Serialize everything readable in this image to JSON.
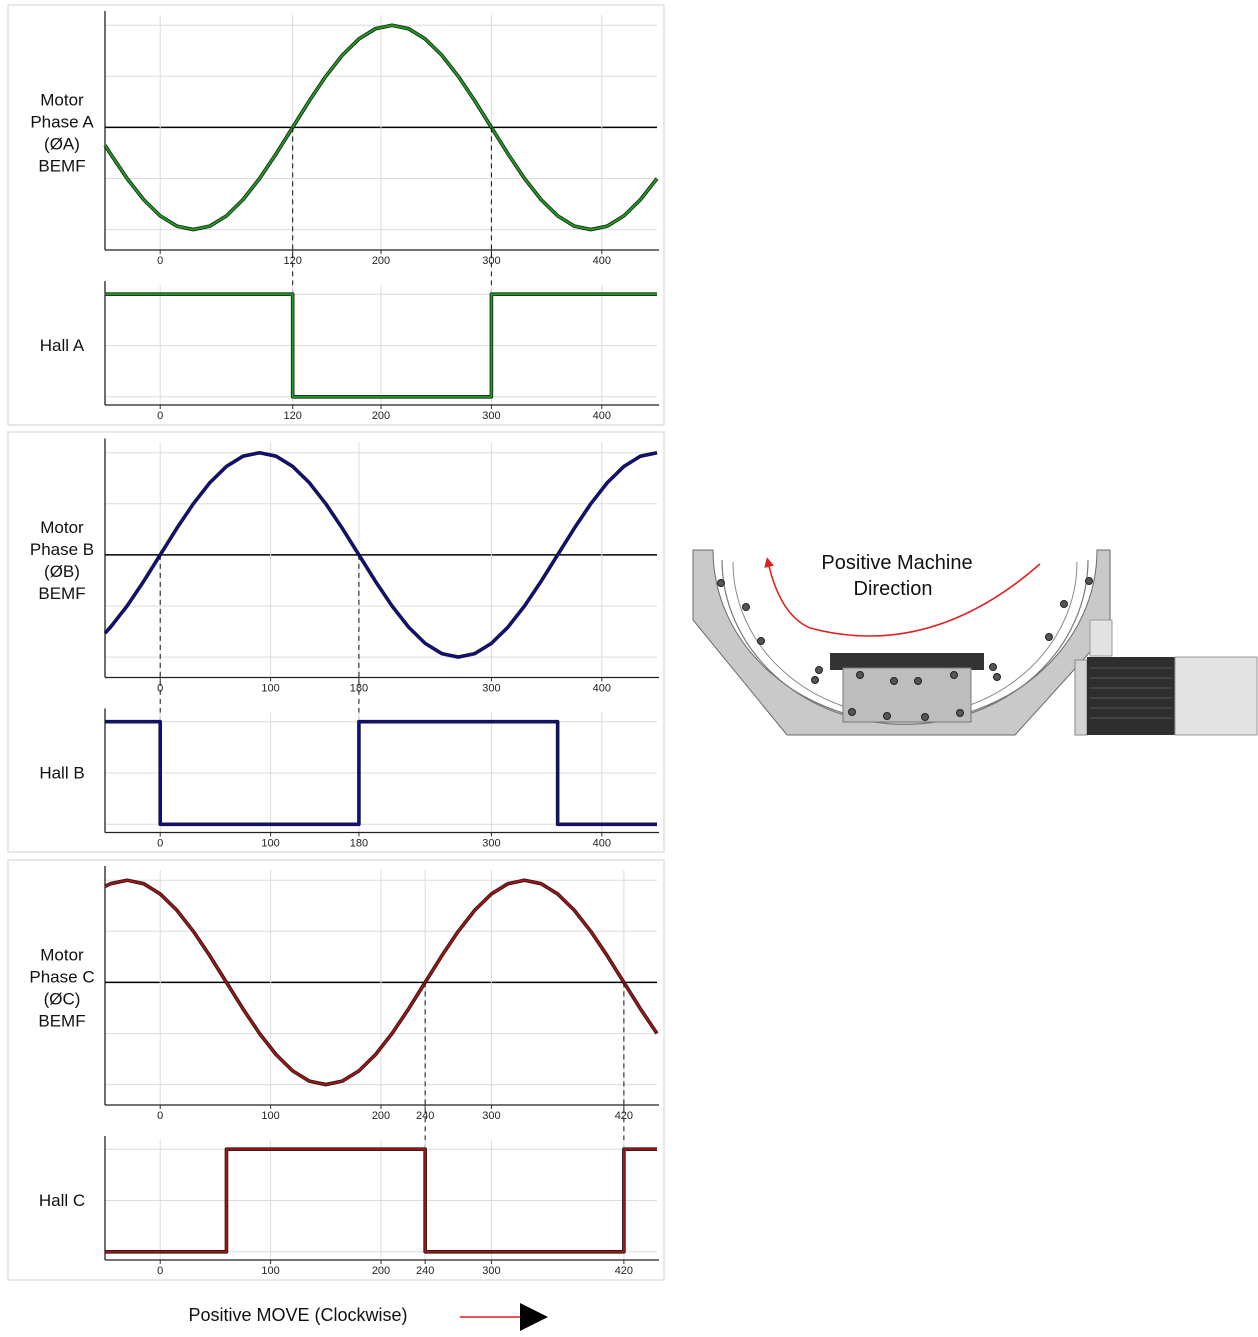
{
  "chart_data": [
    {
      "type": "line",
      "ylabel": [
        "Motor",
        "Phase A",
        "(ØA)",
        "BEMF"
      ],
      "color": "#1c9e1c",
      "x": [
        -50,
        -45,
        -30,
        -15,
        0,
        15,
        30,
        45,
        60,
        75,
        90,
        105,
        120,
        135,
        150,
        165,
        180,
        195,
        210,
        225,
        240,
        255,
        270,
        285,
        300,
        315,
        330,
        345,
        360,
        375,
        390,
        405,
        420,
        435,
        450
      ],
      "values": [
        -0.174,
        -0.259,
        -0.5,
        -0.707,
        -0.866,
        -0.966,
        -1,
        -0.966,
        -0.866,
        -0.707,
        -0.5,
        -0.259,
        0,
        0.259,
        0.5,
        0.707,
        0.866,
        0.966,
        1,
        0.966,
        0.866,
        0.707,
        0.5,
        0.259,
        0,
        -0.259,
        -0.5,
        -0.707,
        -0.866,
        -0.966,
        -1,
        -0.966,
        -0.866,
        -0.707,
        -0.5
      ],
      "xlim": [
        -50,
        450
      ],
      "ylim": [
        -1.2,
        1.1
      ],
      "xticks": [
        0,
        120,
        200,
        300,
        400
      ],
      "yticks": [
        -1,
        -0.5,
        0,
        0.5,
        1
      ],
      "grid": true,
      "crossings": [
        120,
        300
      ]
    },
    {
      "type": "line",
      "ylabel": [
        "Hall A"
      ],
      "color": "#1c9e1c",
      "x": [
        -50,
        120,
        120,
        300,
        300,
        450
      ],
      "values": [
        1,
        1,
        0,
        0,
        1,
        1
      ],
      "xlim": [
        -50,
        450
      ],
      "ylim": [
        -0.08,
        1.09
      ],
      "xticks": [
        0,
        120,
        200,
        300,
        400
      ],
      "yticks": [
        0,
        0.5,
        1
      ],
      "grid": true
    },
    {
      "type": "line",
      "ylabel": [
        "Motor",
        "Phase B",
        "(ØB)",
        "BEMF"
      ],
      "color": "#0c0c94",
      "x": [
        -50,
        -45,
        -30,
        -15,
        0,
        15,
        30,
        45,
        60,
        75,
        90,
        105,
        120,
        135,
        150,
        165,
        180,
        195,
        210,
        225,
        240,
        255,
        270,
        285,
        300,
        315,
        330,
        345,
        360,
        375,
        390,
        405,
        420,
        435,
        450
      ],
      "values": [
        -0.766,
        -0.707,
        -0.5,
        -0.259,
        0,
        0.259,
        0.5,
        0.707,
        0.866,
        0.966,
        1,
        0.966,
        0.866,
        0.707,
        0.5,
        0.259,
        0,
        -0.259,
        -0.5,
        -0.707,
        -0.866,
        -0.966,
        -1,
        -0.966,
        -0.866,
        -0.707,
        -0.5,
        -0.259,
        0,
        0.259,
        0.5,
        0.707,
        0.866,
        0.966,
        1
      ],
      "xlim": [
        -50,
        450
      ],
      "ylim": [
        -1.2,
        1.1
      ],
      "xticks": [
        0,
        100,
        180,
        300,
        400
      ],
      "yticks": [
        -1,
        -0.5,
        0,
        0.5,
        1
      ],
      "grid": true,
      "crossings": [
        0,
        180
      ]
    },
    {
      "type": "line",
      "ylabel": [
        "Hall B"
      ],
      "color": "#0c0c94",
      "x": [
        -50,
        0,
        0,
        180,
        180,
        360,
        360,
        450
      ],
      "values": [
        1,
        1,
        0,
        0,
        1,
        1,
        0,
        0
      ],
      "xlim": [
        -50,
        450
      ],
      "ylim": [
        -0.08,
        1.09
      ],
      "xticks": [
        0,
        100,
        180,
        300,
        400
      ],
      "yticks": [
        0,
        0.5,
        1
      ],
      "grid": true
    },
    {
      "type": "line",
      "ylabel": [
        "Motor",
        "Phase C",
        "(ØC)",
        "BEMF"
      ],
      "color": "#a81212",
      "x": [
        -50,
        -45,
        -30,
        -15,
        0,
        15,
        30,
        45,
        60,
        75,
        90,
        105,
        120,
        135,
        150,
        165,
        180,
        195,
        210,
        225,
        240,
        255,
        270,
        285,
        300,
        315,
        330,
        345,
        360,
        375,
        390,
        405,
        420,
        435,
        450
      ],
      "values": [
        0.94,
        0.966,
        1,
        0.966,
        0.866,
        0.707,
        0.5,
        0.259,
        0,
        -0.259,
        -0.5,
        -0.707,
        -0.866,
        -0.966,
        -1,
        -0.966,
        -0.866,
        -0.707,
        -0.5,
        -0.259,
        0,
        0.259,
        0.5,
        0.707,
        0.866,
        0.966,
        1,
        0.966,
        0.866,
        0.707,
        0.5,
        0.259,
        0,
        -0.259,
        -0.5
      ],
      "xlim": [
        -50,
        450
      ],
      "ylim": [
        -1.2,
        1.1
      ],
      "xticks": [
        0,
        100,
        200,
        240,
        300,
        420
      ],
      "yticks": [
        -1,
        -0.5,
        0,
        0.5,
        1
      ],
      "grid": true,
      "crossings": [
        240,
        420
      ]
    },
    {
      "type": "line",
      "ylabel": [
        "Hall C"
      ],
      "color": "#a81212",
      "x": [
        -50,
        60,
        60,
        240,
        240,
        420,
        420,
        450
      ],
      "values": [
        0,
        0,
        1,
        1,
        0,
        0,
        1,
        1
      ],
      "xlim": [
        -50,
        450
      ],
      "ylim": [
        -0.08,
        1.09
      ],
      "xticks": [
        0,
        100,
        200,
        240,
        300,
        420
      ],
      "yticks": [
        0,
        0.5,
        1
      ],
      "grid": true
    }
  ],
  "figure": {
    "direction_label": [
      "Positive Machine",
      "Direction"
    ],
    "move_label": "Positive MOVE (Clockwise)"
  }
}
